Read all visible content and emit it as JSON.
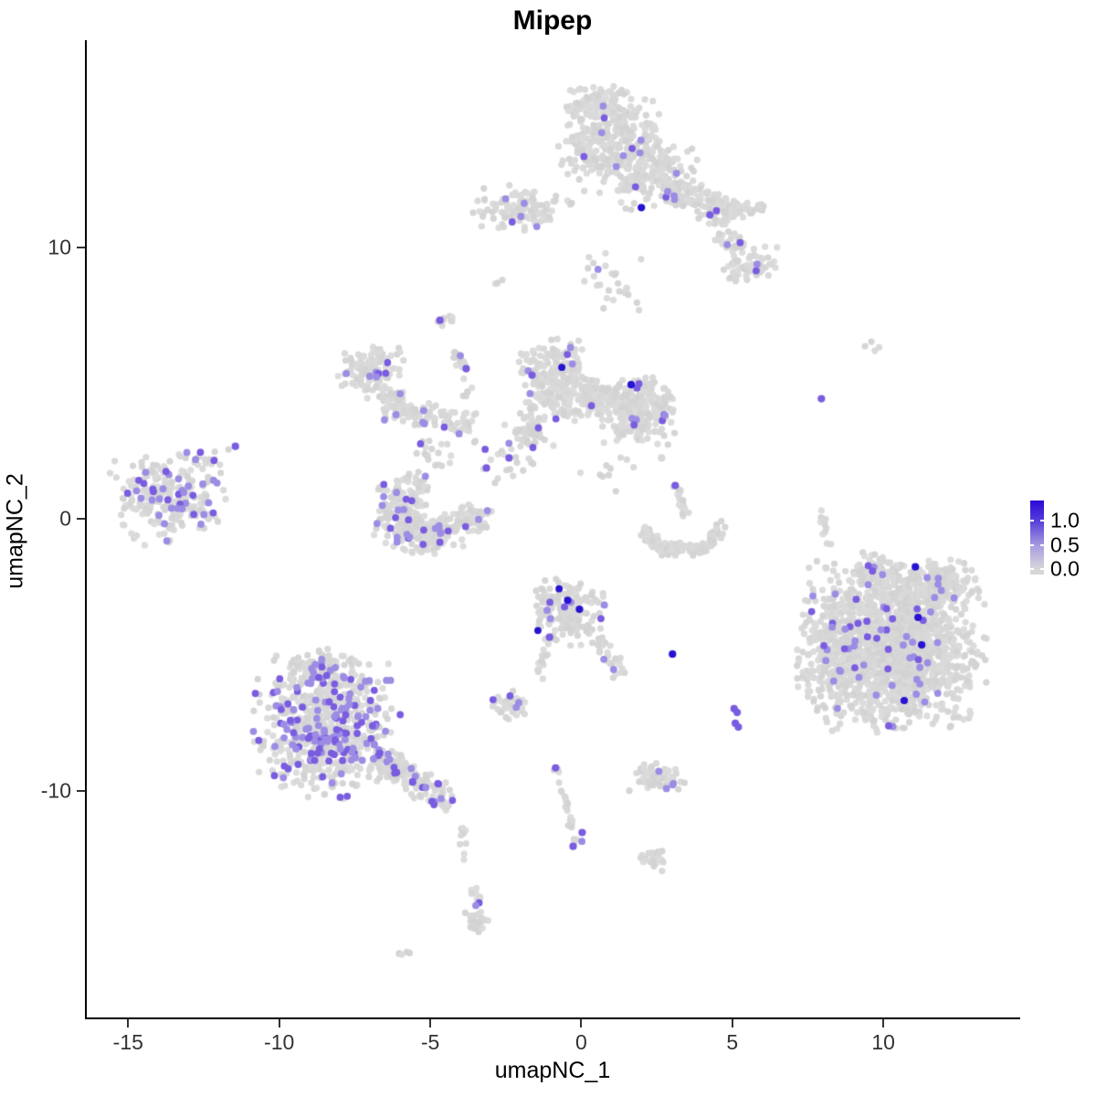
{
  "title": "Mipep",
  "chart_data": {
    "type": "scatter",
    "title": "Mipep",
    "xlabel": "umapNC_1",
    "ylabel": "umapNC_2",
    "xlim": [
      -16.4,
      14.5
    ],
    "ylim": [
      -18.35,
      17.6
    ],
    "xticks": [
      "-15",
      "-10",
      "-5",
      "0",
      "5",
      "10"
    ],
    "xtick_values": [
      -15,
      -10,
      -5,
      0,
      5,
      10
    ],
    "yticks": [
      "10",
      "0",
      "-10"
    ],
    "ytick_values": [
      10,
      0,
      -10
    ],
    "grid": false,
    "legend": {
      "labels": [
        "1.0",
        "0.5",
        "0.0"
      ],
      "values": [
        1.0,
        0.5,
        0.0
      ],
      "position": "right",
      "gradient_top_color": "#2b0ad6",
      "gradient_bottom_color": "#d7d7d7"
    },
    "point_colors": {
      "gray": "#d8d8d8",
      "light_purple": "#9d8ce4",
      "mid_purple": "#7a5ce0",
      "deep_blue": "#2713d1"
    },
    "seed": 42,
    "clusters": [
      {
        "x": 0.95,
        "y": 14.0,
        "rx": 1.55,
        "ry": 1.75,
        "n": 330,
        "f": 0.03
      },
      {
        "x": 2.36,
        "y": 12.7,
        "rx": 1.35,
        "ry": 1.15,
        "n": 160,
        "f": 0.045
      },
      {
        "x": 0.4,
        "y": 15.3,
        "rx": 0.85,
        "ry": 0.6,
        "n": 55,
        "f": 0.02
      },
      {
        "x": 1.0,
        "y": 8.8,
        "rx": 1.5,
        "ry": 1.1,
        "n": 26,
        "f": 0.04
      },
      {
        "x": 5.55,
        "y": 9.4,
        "rx": 0.85,
        "ry": 0.6,
        "n": 65,
        "f": 0.09
      },
      {
        "x": -2.0,
        "y": 11.4,
        "rx": 1.5,
        "ry": 0.8,
        "n": 115,
        "f": 0.05
      },
      {
        "x": -2.8,
        "y": 8.75,
        "rx": 0.18,
        "ry": 0.12,
        "n": 3,
        "f": 0
      },
      {
        "x": -4.55,
        "y": 7.3,
        "rx": 0.3,
        "ry": 0.28,
        "n": 9,
        "f": 0
      },
      {
        "x": -6.95,
        "y": 5.45,
        "rx": 1.0,
        "ry": 0.9,
        "n": 115,
        "f": 0.07,
        "no_deep": true
      },
      {
        "x": -6.2,
        "y": 4.2,
        "rx": 0.65,
        "ry": 0.55,
        "n": 55,
        "f": 0.1,
        "no_deep": true
      },
      {
        "x": -0.85,
        "y": 5.1,
        "rx": 1.1,
        "ry": 1.35,
        "n": 240,
        "f": 0.05
      },
      {
        "x": 1.9,
        "y": 4.0,
        "rx": 1.15,
        "ry": 1.1,
        "n": 250,
        "f": 0.055
      },
      {
        "x": 0.55,
        "y": 4.4,
        "rx": 0.85,
        "ry": 0.6,
        "n": 90,
        "f": 0.02
      },
      {
        "x": -1.7,
        "y": 3.3,
        "rx": 0.55,
        "ry": 0.65,
        "n": 45,
        "f": 0.02
      },
      {
        "x": -2.2,
        "y": 2.5,
        "rx": 1.3,
        "ry": 1.2,
        "n": 28,
        "f": 0.07,
        "no_deep": true
      },
      {
        "x": 0.8,
        "y": 1.7,
        "rx": 1.0,
        "ry": 0.9,
        "n": 10,
        "f": 0
      },
      {
        "x": -13.65,
        "y": 0.8,
        "rx": 1.7,
        "ry": 1.55,
        "n": 240,
        "f": 0.17,
        "no_deep": true
      },
      {
        "x": -12.1,
        "y": 2.2,
        "rx": 0.55,
        "ry": 0.45,
        "n": 9,
        "f": 0.25,
        "no_deep": true
      },
      {
        "x": -6.05,
        "y": 0.2,
        "rx": 0.8,
        "ry": 1.15,
        "n": 125,
        "f": 0.08,
        "no_deep": true
      },
      {
        "x": -5.0,
        "y": -0.55,
        "rx": 1.05,
        "ry": 0.65,
        "n": 135,
        "f": 0.1,
        "no_deep": true
      },
      {
        "x": -3.6,
        "y": 0.0,
        "rx": 0.7,
        "ry": 0.55,
        "n": 70,
        "f": 0.04,
        "no_deep": true
      },
      {
        "x": -5.5,
        "y": 1.35,
        "rx": 0.6,
        "ry": 0.4,
        "n": 22,
        "f": 0.04,
        "no_deep": true
      },
      {
        "x": -0.45,
        "y": -3.4,
        "rx": 1.2,
        "ry": 1.1,
        "n": 175,
        "f": 0.08
      },
      {
        "x": -8.45,
        "y": -7.6,
        "rx": 2.15,
        "ry": 2.35,
        "n": 620,
        "f": 0.27,
        "no_deep": true
      },
      {
        "x": -8.85,
        "y": -5.5,
        "rx": 0.95,
        "ry": 0.65,
        "n": 75,
        "f": 0.2,
        "no_deep": true
      },
      {
        "x": -2.4,
        "y": -6.85,
        "rx": 0.65,
        "ry": 0.5,
        "n": 42,
        "f": 0.1,
        "no_deep": true
      },
      {
        "x": 10.3,
        "y": -4.7,
        "rx": 2.75,
        "ry": 2.75,
        "n": 1600,
        "f": 0.027
      },
      {
        "x": 8.3,
        "y": -5.3,
        "rx": 0.85,
        "ry": 1.6,
        "n": 110,
        "f": 0.05
      },
      {
        "x": 11.9,
        "y": -2.4,
        "rx": 1.1,
        "ry": 0.8,
        "n": 120,
        "f": 0.03
      },
      {
        "x": 9.7,
        "y": -1.9,
        "rx": 0.8,
        "ry": 0.6,
        "n": 70,
        "f": 0.04
      },
      {
        "x": 2.5,
        "y": -9.5,
        "rx": 0.8,
        "ry": 0.45,
        "n": 62,
        "f": 0.1,
        "no_deep": true
      },
      {
        "x": 2.4,
        "y": -12.55,
        "rx": 0.42,
        "ry": 0.38,
        "n": 24,
        "f": 0.1,
        "no_deep": true
      },
      {
        "x": -3.4,
        "y": -14.85,
        "rx": 0.4,
        "ry": 0.32,
        "n": 22,
        "f": 0.08,
        "no_deep": true
      },
      {
        "x": -5.95,
        "y": -16.0,
        "rx": 0.28,
        "ry": 0.14,
        "n": 5,
        "f": 0
      },
      {
        "x": 9.6,
        "y": 6.35,
        "rx": 0.45,
        "ry": 0.25,
        "n": 4,
        "f": 0
      }
    ],
    "strands": [
      {
        "x1": 2.8,
        "y1": 12.2,
        "x2": 5.0,
        "y2": 11.2,
        "w": 0.55,
        "n": 120,
        "f": 0.03
      },
      {
        "x1": 5.0,
        "y1": 11.2,
        "x2": 6.1,
        "y2": 11.5,
        "w": 0.3,
        "n": 25,
        "f": 0.04
      },
      {
        "x1": 4.6,
        "y1": 10.6,
        "x2": 5.4,
        "y2": 9.9,
        "w": 0.35,
        "n": 30,
        "f": 0.05
      },
      {
        "x1": -5.85,
        "y1": 3.95,
        "x2": -3.55,
        "y2": 3.45,
        "w": 0.42,
        "n": 75,
        "f": 0.07
      },
      {
        "x1": -4.2,
        "y1": 6.3,
        "x2": -3.7,
        "y2": 4.5,
        "w": 0.25,
        "n": 22,
        "f": 0.04
      },
      {
        "x1": -5.3,
        "y1": 2.9,
        "x2": -4.4,
        "y2": 2.0,
        "w": 0.5,
        "n": 18,
        "f": 0.05
      },
      {
        "x1": 2.1,
        "y1": -0.3,
        "x2": 2.5,
        "y2": -1.05,
        "w": 0.22,
        "n": 30,
        "f": 0
      },
      {
        "x1": 2.5,
        "y1": -1.1,
        "x2": 4.2,
        "y2": -1.1,
        "w": 0.25,
        "n": 80,
        "f": 0
      },
      {
        "x1": 4.2,
        "y1": -1.05,
        "x2": 4.65,
        "y2": -0.05,
        "w": 0.22,
        "n": 30,
        "f": 0
      },
      {
        "x1": 3.1,
        "y1": 1.3,
        "x2": 3.5,
        "y2": 0.15,
        "w": 0.2,
        "n": 16,
        "f": 0
      },
      {
        "x1": 7.95,
        "y1": 0.75,
        "x2": 8.15,
        "y2": -0.95,
        "w": 0.15,
        "n": 11,
        "f": 0
      },
      {
        "x1": 0.55,
        "y1": -4.4,
        "x2": 1.4,
        "y2": -5.8,
        "w": 0.3,
        "n": 26,
        "f": 0.08
      },
      {
        "x1": -1.1,
        "y1": -4.75,
        "x2": -1.5,
        "y2": -6.0,
        "w": 0.18,
        "n": 12,
        "f": 0
      },
      {
        "x1": -6.9,
        "y1": -8.7,
        "x2": -4.25,
        "y2": -10.45,
        "w": 0.5,
        "n": 130,
        "f": 0.12
      },
      {
        "x1": -4.0,
        "y1": -11.1,
        "x2": -3.8,
        "y2": -12.8,
        "w": 0.15,
        "n": 12,
        "f": 0.08
      },
      {
        "x1": -3.55,
        "y1": -13.6,
        "x2": -3.35,
        "y2": -14.5,
        "w": 0.15,
        "n": 11,
        "f": 0.25
      },
      {
        "x1": -0.85,
        "y1": -9.2,
        "x2": -0.1,
        "y2": -11.9,
        "w": 0.18,
        "n": 24,
        "f": 0.08
      }
    ],
    "highlight_dots": [
      {
        "x": 11.06,
        "y": -1.76,
        "shade": "deep"
      },
      {
        "x": 11.15,
        "y": -3.62,
        "shade": "deep"
      },
      {
        "x": 11.27,
        "y": -4.63,
        "shade": "deep"
      },
      {
        "x": 10.69,
        "y": -6.68,
        "shade": "deep"
      },
      {
        "x": -0.45,
        "y": -2.99,
        "shade": "deep"
      },
      {
        "x": -0.06,
        "y": -3.32,
        "shade": "deep"
      },
      {
        "x": 3.02,
        "y": -4.97,
        "shade": "deep"
      },
      {
        "x": 1.65,
        "y": 4.95,
        "shade": "deep"
      },
      {
        "x": 1.99,
        "y": 11.47,
        "shade": "deep"
      },
      {
        "x": 5.06,
        "y": -6.98,
        "shade": "mid"
      },
      {
        "x": 5.16,
        "y": -7.12,
        "shade": "mid"
      },
      {
        "x": 5.1,
        "y": -7.52,
        "shade": "mid"
      },
      {
        "x": 5.2,
        "y": -7.66,
        "shade": "mid"
      },
      {
        "x": 7.95,
        "y": 4.43,
        "shade": "mid"
      },
      {
        "x": -11.45,
        "y": 2.68,
        "shade": "mid"
      },
      {
        "x": -4.68,
        "y": 7.32,
        "shade": "mid"
      },
      {
        "x": -3.81,
        "y": 5.54,
        "shade": "mid"
      },
      {
        "x": 3.11,
        "y": 1.24,
        "shade": "mid"
      },
      {
        "x": -2.39,
        "y": 2.25,
        "shade": "mid"
      },
      {
        "x": -3.14,
        "y": 1.88,
        "shade": "mid"
      },
      {
        "x": -0.85,
        "y": -9.16,
        "shade": "mid"
      },
      {
        "x": 0.03,
        "y": -11.54,
        "shade": "mid"
      },
      {
        "x": -0.27,
        "y": -12.05,
        "shade": "mid"
      },
      {
        "x": 4.26,
        "y": 11.2,
        "shade": "mid"
      },
      {
        "x": -1.63,
        "y": 5.3,
        "shade": "mid"
      },
      {
        "x": -1.05,
        "y": -4.35,
        "shade": "mid"
      },
      {
        "x": 8.1,
        "y": -1.8,
        "shade": "gray"
      },
      {
        "x": 2.66,
        "y": 2.25,
        "shade": "gray"
      }
    ]
  }
}
